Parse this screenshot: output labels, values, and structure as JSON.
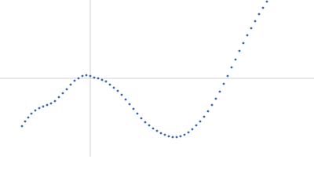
{
  "chart_data": {
    "type": "scatter",
    "color": "#3a64b0",
    "x": [
      28,
      32,
      36,
      40,
      45,
      50,
      55,
      60,
      65,
      70,
      75,
      80,
      85,
      90,
      95,
      100,
      105,
      110,
      115,
      120,
      125,
      130,
      135,
      140,
      145,
      150,
      155,
      160,
      165,
      170,
      175,
      180,
      185,
      190,
      195,
      200,
      205,
      210,
      215,
      220,
      225,
      230,
      235,
      240,
      245,
      250,
      255,
      260,
      265,
      270,
      275,
      280,
      285,
      290,
      295,
      300,
      305,
      310,
      315,
      320,
      325,
      330,
      335,
      340
    ],
    "values": [
      39,
      45,
      50,
      55,
      59,
      62,
      64,
      66,
      68,
      71,
      76,
      81,
      86,
      92,
      97,
      100,
      103,
      104,
      103,
      101,
      100,
      98,
      96,
      92,
      88,
      84,
      79,
      73,
      67,
      61,
      55,
      49,
      44,
      40,
      36,
      33,
      30,
      28,
      26,
      25,
      25,
      26,
      28,
      31,
      35,
      40,
      45,
      51,
      58,
      66,
      74,
      83,
      93,
      103,
      114,
      124,
      135,
      145,
      155,
      164,
      173,
      182,
      190,
      198
    ],
    "xlim": [
      0,
      400
    ],
    "ylim": [
      0,
      200
    ],
    "reference_lines": {
      "x": 115,
      "y": 100,
      "color": "#d0d0d0"
    }
  }
}
